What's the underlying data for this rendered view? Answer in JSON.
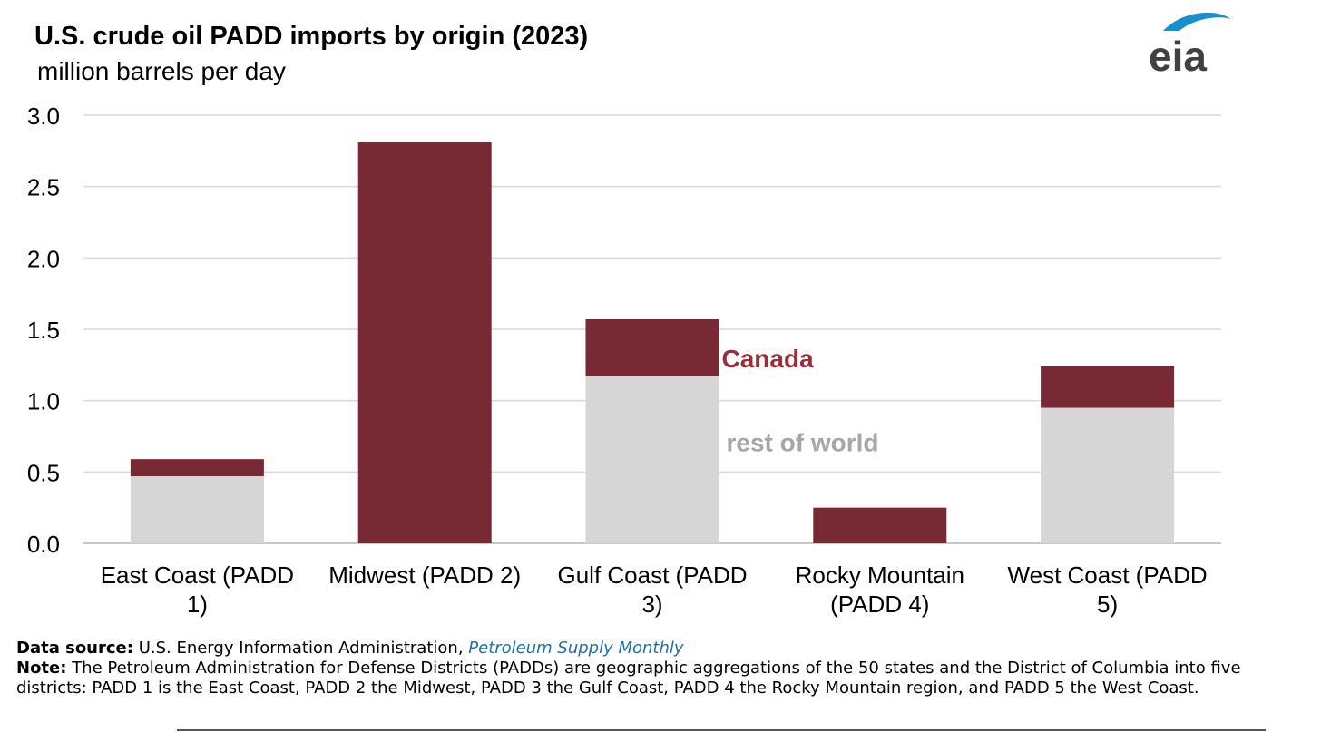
{
  "header": {
    "title": "U.S. crude oil PADD imports by origin (2023)",
    "subtitle": "million barrels per day",
    "logo_text": "eia"
  },
  "colors": {
    "canada": "#772a33",
    "rest_of_world": "#d6d6d6",
    "canada_label": "#9b2d3a",
    "row_label": "#a6a6a6",
    "grid": "#d9d9d9",
    "logo_arc": "#1a8fd0",
    "logo_text": "#404040"
  },
  "chart_data": {
    "type": "bar",
    "stacked": true,
    "title": "U.S. crude oil PADD imports by origin (2023)",
    "ylabel": "million barrels per day",
    "xlabel": "",
    "ylim": [
      0,
      3.0
    ],
    "yticks": [
      "0.0",
      "0.5",
      "1.0",
      "1.5",
      "2.0",
      "2.5",
      "3.0"
    ],
    "grid": true,
    "categories": [
      [
        "East Coast (PADD",
        "1)"
      ],
      [
        "Midwest (PADD 2)"
      ],
      [
        "Gulf Coast (PADD",
        "3)"
      ],
      [
        "Rocky Mountain",
        "(PADD 4)"
      ],
      [
        "West Coast (PADD",
        "5)"
      ]
    ],
    "series": [
      {
        "name": "rest of world",
        "values": [
          0.47,
          0.0,
          1.17,
          0.0,
          0.95
        ]
      },
      {
        "name": "Canada",
        "values": [
          0.12,
          2.81,
          0.4,
          0.25,
          0.29
        ]
      }
    ],
    "annotations": [
      {
        "text": "Canada",
        "series": "Canada",
        "near_category": 2
      },
      {
        "text": "rest of world",
        "series": "rest of world",
        "near_category": 2
      }
    ]
  },
  "footer": {
    "source_label": "Data source:",
    "source_text": "U.S. Energy Information Administration,",
    "source_link": "Petroleum Supply Monthly",
    "note_label": "Note:",
    "note_text": "The Petroleum Administration for Defense Districts (PADDs) are geographic aggregations of the 50 states and the District of Columbia into five districts: PADD 1 is the East Coast, PADD 2 the Midwest, PADD 3 the Gulf Coast, PADD 4 the Rocky Mountain region, and PADD 5 the West Coast."
  }
}
